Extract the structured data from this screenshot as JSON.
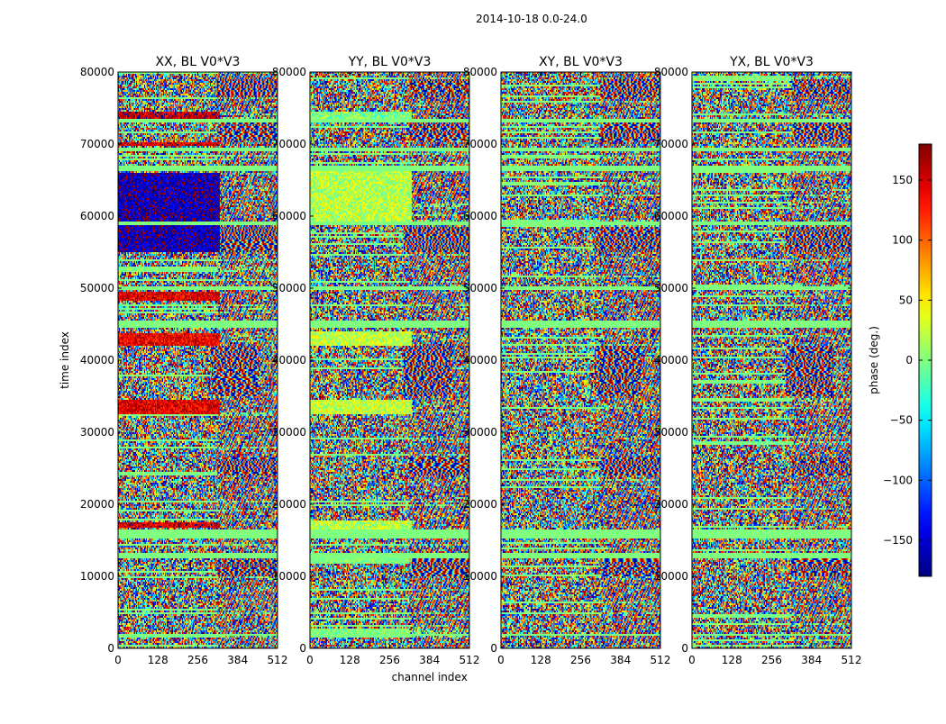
{
  "suptitle": "2014-10-18 0.0-24.0",
  "chart_data": {
    "type": "heatmap",
    "panels": [
      {
        "title": "XX, BL V0*V3",
        "product": "XX"
      },
      {
        "title": "YY, BL V0*V3",
        "product": "YY"
      },
      {
        "title": "XY, BL V0*V3",
        "product": "XY"
      },
      {
        "title": "YX, BL V0*V3",
        "product": "YX"
      }
    ],
    "xlabel": "channel index",
    "ylabel": "time index",
    "xlim": [
      0,
      512
    ],
    "ylim": [
      0,
      80000
    ],
    "xticks": [
      0,
      128,
      256,
      384,
      512
    ],
    "yticks": [
      0,
      10000,
      20000,
      30000,
      40000,
      50000,
      60000,
      70000,
      80000
    ],
    "colorbar": {
      "label": "phase (deg.)",
      "range": [
        -180,
        180
      ],
      "ticks": [
        -150,
        -100,
        -50,
        0,
        50,
        100,
        150
      ],
      "tick_labels": [
        "−150",
        "−100",
        "−50",
        "0",
        "50",
        "100",
        "150"
      ],
      "colormap": "jet"
    },
    "flagged_rows_uniform_zero_phase": [
      [
        1800,
        2000
      ],
      [
        12600,
        13300
      ],
      [
        15200,
        16600
      ],
      [
        44600,
        45600
      ],
      [
        49700,
        50300
      ],
      [
        58800,
        59200
      ],
      [
        66200,
        67000
      ],
      [
        69000,
        69600
      ],
      [
        73000,
        73400
      ]
    ],
    "high_phase_low_channel_bands": {
      "XX": [
        {
          "t": [
            16700,
            17600
          ],
          "ch": [
            0,
            325
          ],
          "phase_deg": 150
        },
        {
          "t": [
            32600,
            34500
          ],
          "ch": [
            0,
            325
          ],
          "phase_deg": 145
        },
        {
          "t": [
            42000,
            43800
          ],
          "ch": [
            0,
            325
          ],
          "phase_deg": 140
        },
        {
          "t": [
            48200,
            49400
          ],
          "ch": [
            0,
            325
          ],
          "phase_deg": 145
        },
        {
          "t": [
            55000,
            66000
          ],
          "ch": [
            0,
            325
          ],
          "phase_deg": -160
        },
        {
          "t": [
            69800,
            70300
          ],
          "ch": [
            0,
            325
          ],
          "phase_deg": 150
        },
        {
          "t": [
            73600,
            74400
          ],
          "ch": [
            0,
            325
          ],
          "phase_deg": 155
        }
      ],
      "YY": [
        {
          "t": [
            15300,
            17800
          ],
          "ch": [
            0,
            325
          ],
          "phase_deg": 20
        },
        {
          "t": [
            32600,
            34500
          ],
          "ch": [
            0,
            325
          ],
          "phase_deg": 25
        },
        {
          "t": [
            42000,
            44000
          ],
          "ch": [
            0,
            325
          ],
          "phase_deg": 25
        },
        {
          "t": [
            58800,
            66200
          ],
          "ch": [
            0,
            325
          ],
          "phase_deg": 20
        },
        {
          "t": [
            73000,
            74400
          ],
          "ch": [
            0,
            325
          ],
          "phase_deg": 0
        }
      ],
      "XY": [],
      "YX": []
    },
    "fringe_regions": [
      {
        "t": [
          10000,
          13000
        ],
        "ch": [
          320,
          512
        ]
      },
      {
        "t": [
          24000,
          26500
        ],
        "ch": [
          320,
          512
        ]
      },
      {
        "t": [
          35000,
          42000
        ],
        "ch": [
          300,
          450
        ]
      },
      {
        "t": [
          55000,
          58500
        ],
        "ch": [
          300,
          512
        ]
      },
      {
        "t": [
          70500,
          73000
        ],
        "ch": [
          320,
          512
        ]
      },
      {
        "t": [
          76500,
          79000
        ],
        "ch": [
          320,
          512
        ]
      }
    ]
  }
}
